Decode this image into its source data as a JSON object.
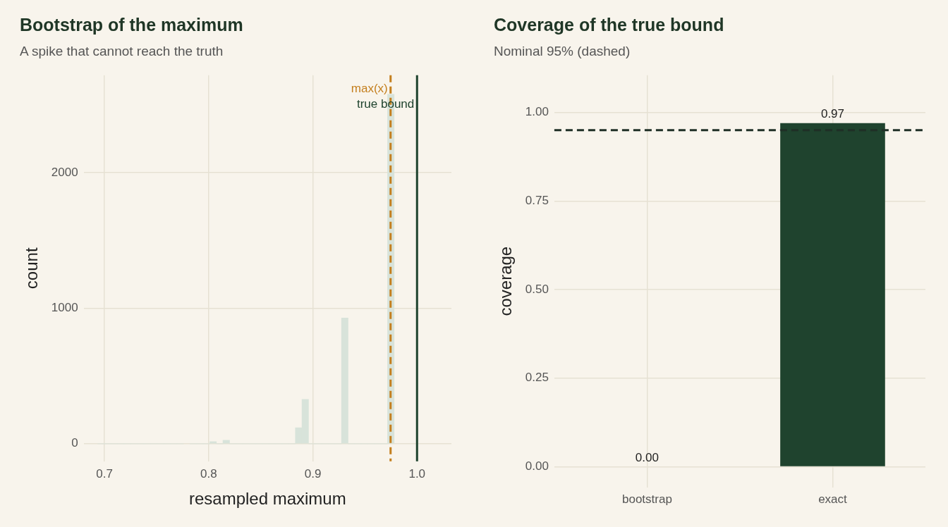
{
  "chart_data": [
    {
      "type": "histogram",
      "title": "Bootstrap of the maximum",
      "subtitle": "A spike that cannot reach the truth",
      "xlabel": "resampled maximum",
      "ylabel": "count",
      "bins": [
        0.6873,
        0.6936,
        0.6999,
        0.7063,
        0.7126,
        0.7189,
        0.7252,
        0.7315,
        0.7379,
        0.7442,
        0.7505,
        0.7568,
        0.7631,
        0.7695,
        0.7758,
        0.7821,
        0.7884,
        0.7947,
        0.8011,
        0.8074,
        0.8137,
        0.82,
        0.8263,
        0.8327,
        0.839,
        0.8453,
        0.8516,
        0.8579,
        0.8643,
        0.8706,
        0.8769,
        0.8832,
        0.8895,
        0.8959,
        0.9022,
        0.9085,
        0.9148,
        0.9211,
        0.9275,
        0.9338,
        0.9401,
        0.9464,
        0.9527,
        0.9591,
        0.9654,
        0.9717,
        0.978
      ],
      "values": [
        null,
        0,
        0,
        0,
        0,
        0,
        0,
        0,
        0,
        0,
        0,
        0,
        0,
        0,
        null,
        0,
        0,
        0,
        16,
        0,
        26,
        0,
        0,
        0,
        0,
        0,
        0,
        0,
        0,
        0,
        0,
        118,
        327,
        0,
        0,
        0,
        0,
        0,
        928,
        0,
        0,
        0,
        0,
        0,
        0,
        2580
      ],
      "color": "#d8e3da",
      "xlim": [
        0.68,
        1.033
      ],
      "xticks": [
        0.7,
        0.8,
        0.9,
        {
          "value": 1,
          "label": "1.0"
        }
      ],
      "ylim": [
        -130,
        2720
      ],
      "yticks": [
        0,
        1000,
        2000
      ],
      "grid": true,
      "ref_lines": [
        {
          "axis": "x",
          "value": 0.9746,
          "label": "max(x)",
          "color": "#c47f1e",
          "line_style": "dashed"
        },
        {
          "axis": "x",
          "value": 1,
          "label": "true bound",
          "color": "#1f432e",
          "line_style": "solid"
        }
      ]
    },
    {
      "type": "bar",
      "title": "Coverage of the true bound",
      "subtitle": "Nominal 95% (dashed)",
      "ylabel": "coverage",
      "categories": [
        "bootstrap",
        "exact"
      ],
      "values": [
        0,
        0.97
      ],
      "value_labels": [
        "0.00",
        "0.97"
      ],
      "color": "#1f432e",
      "ylim": [
        -0.058,
        1.105
      ],
      "yticks": [
        {
          "value": 0,
          "label": "0.00"
        },
        {
          "value": 0.25,
          "label": "0.25"
        },
        {
          "value": 0.5,
          "label": "0.50"
        },
        {
          "value": 0.75,
          "label": "0.75"
        },
        {
          "value": 1,
          "label": "1.00"
        }
      ],
      "grid": true,
      "ref_lines": [
        {
          "axis": "y",
          "value": 0.95,
          "color": "#1f2f26",
          "line_style": "dashed"
        }
      ]
    }
  ]
}
